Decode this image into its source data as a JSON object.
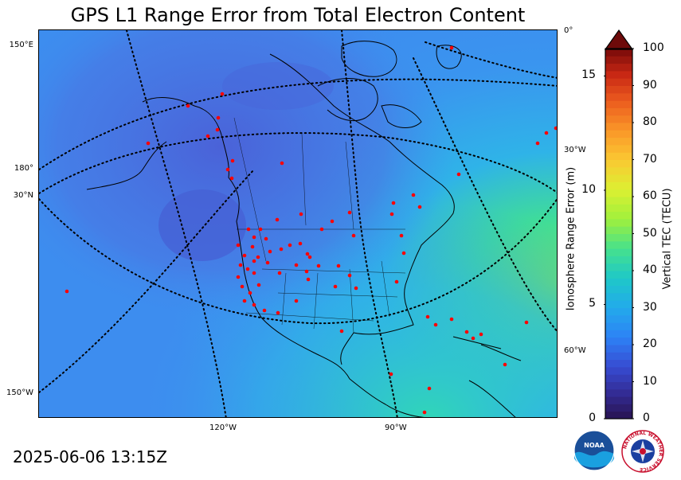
{
  "title": "GPS L1 Range Error from Total Electron Content",
  "timestamp": "2025-06-06 13:15Z",
  "map": {
    "labels": {
      "lon_150e": "150°E",
      "lon_180": "180°",
      "lat_30n": "30°N",
      "lon_150w": "150°W",
      "lon_0": "0°",
      "lon_30w": "30°W",
      "lon_60w": "60°W",
      "lon_120w": "120°W",
      "lon_90w": "90°W"
    },
    "station_marker_color": "#ff0000"
  },
  "colorbar": {
    "tec_label": "Vertical TEC (TECU)",
    "tec_ticks": [
      "100",
      "90",
      "80",
      "70",
      "60",
      "50",
      "40",
      "30",
      "20",
      "10",
      "0"
    ],
    "range_label": "Ionosphere Range Error (m)",
    "range_ticks": [
      "15",
      "10",
      "5",
      "0"
    ],
    "tec_range": [
      0,
      100
    ],
    "range_error_range_m": [
      0,
      16.2
    ],
    "extend": "max"
  },
  "logos": {
    "noaa_text": "NOAA",
    "nws_text": "NATIONAL WEATHER SERVICE"
  }
}
